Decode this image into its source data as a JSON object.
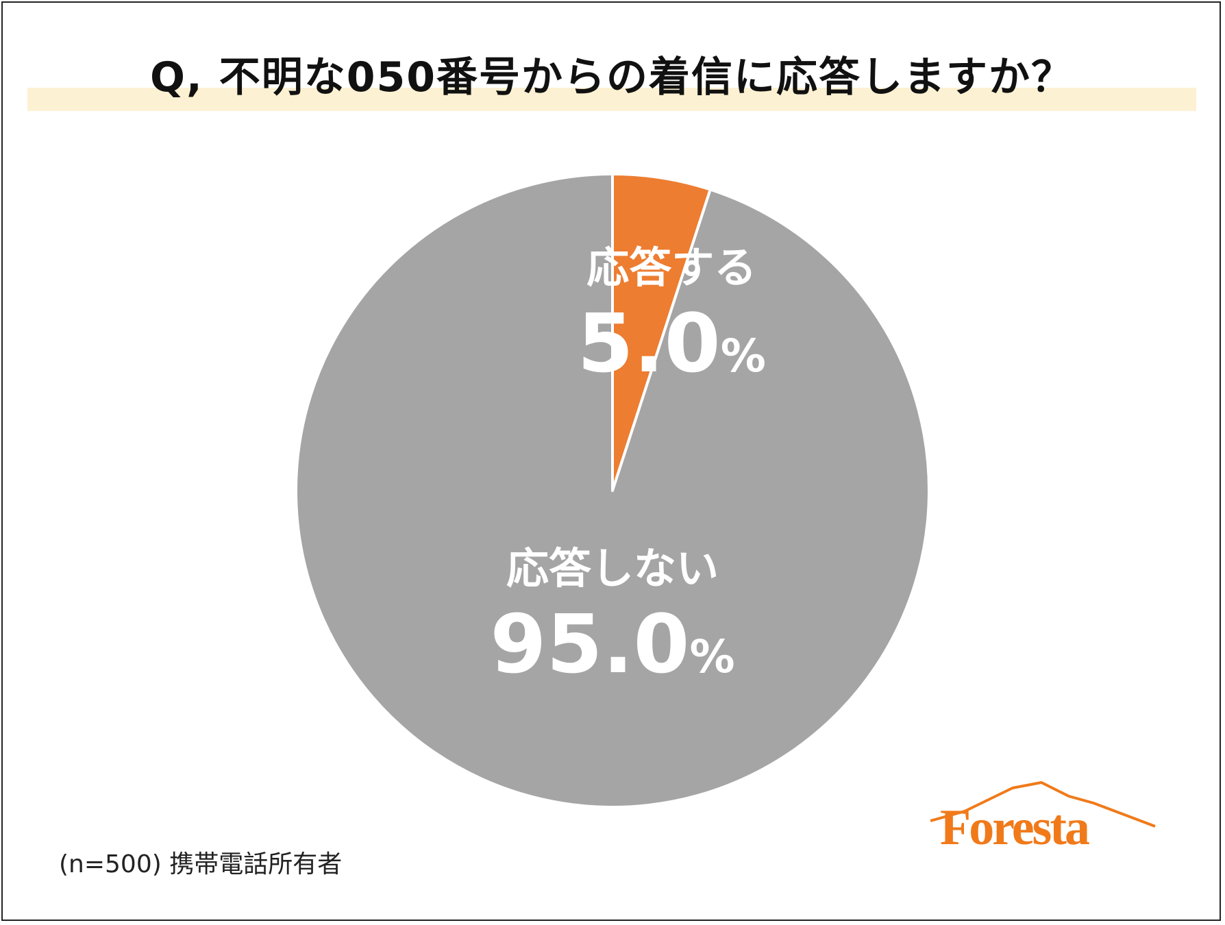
{
  "title": "Q, 不明な050番号からの着信に応答しますか？",
  "note": "(n=500) 携帯電話所有者",
  "logo_text": "Foresta",
  "colors": {
    "answer": "#ed7d31",
    "no_answer": "#a5a5a5",
    "title_band": "#fdf1d3",
    "logo": "#f07a1a"
  },
  "chart_data": {
    "type": "pie",
    "title": "Q, 不明な050番号からの着信に応答しますか？",
    "slices": [
      {
        "label": "応答する",
        "value": 5.0,
        "display": "5.0",
        "unit": "%",
        "color": "#ed7d31"
      },
      {
        "label": "応答しない",
        "value": 95.0,
        "display": "95.0",
        "unit": "%",
        "color": "#a5a5a5"
      }
    ],
    "start_angle": "12 o'clock",
    "direction": "clockwise"
  }
}
